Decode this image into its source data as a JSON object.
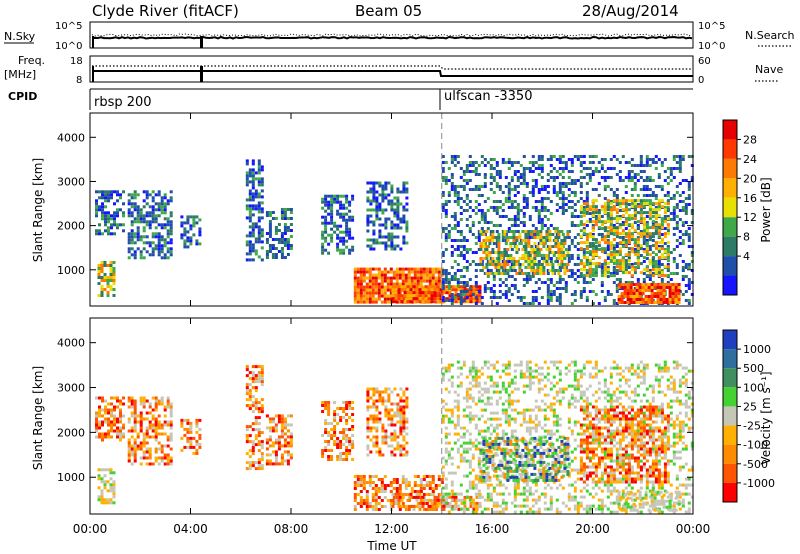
{
  "header": {
    "station": "Clyde River (fitACF)",
    "beam": "Beam 05",
    "date": "28/Aug/2014"
  },
  "panels": {
    "nsky": {
      "left_label": "N.Sky",
      "ticks_left": [
        "10^5",
        "10^0"
      ],
      "right_label": "N.Search",
      "ticks_right": [
        "10^5",
        "10^0"
      ]
    },
    "freq": {
      "left_label_1": "Freq.",
      "left_label_2": "[MHz]",
      "ticks_left": [
        "18",
        "8"
      ],
      "right_label": "Nave",
      "ticks_right": [
        "60",
        "0"
      ]
    },
    "cpid": {
      "label": "CPID",
      "programs": [
        {
          "name": "rbsp 200",
          "start_hour": 0
        },
        {
          "name": "ulfscan -3350",
          "start_hour": 14
        }
      ]
    }
  },
  "x_axis": {
    "title": "Time UT",
    "tick_labels": [
      "00:00",
      "04:00",
      "08:00",
      "12:00",
      "16:00",
      "20:00",
      "00:00"
    ]
  },
  "colorbars": {
    "power": {
      "title": "Power [dB]",
      "labels": [
        "28",
        "24",
        "20",
        "16",
        "12",
        "8",
        "4"
      ],
      "colors": [
        "#e60000",
        "#ff3a00",
        "#ff7a00",
        "#ffb000",
        "#e8e000",
        "#3fa94a",
        "#2d7a66",
        "#1f4fa8",
        "#1515ff"
      ]
    },
    "velocity": {
      "title": "Velocity [m s⁻¹]",
      "labels": [
        "1000",
        "500",
        "100",
        "25",
        "-25",
        "-100",
        "-500",
        "-1000"
      ],
      "colors": [
        "#1f3fbf",
        "#2e6fa0",
        "#3f8f5f",
        "#44d233",
        "#c6c6b8",
        "#ffb000",
        "#ff8c00",
        "#ff5500",
        "#ff0000"
      ]
    }
  },
  "chart_data": [
    {
      "type": "heatmap",
      "name": "power",
      "ylabel": "Slant Range [km]",
      "xlabel": "",
      "ylim": [
        180,
        4550
      ],
      "xlim_hours": [
        0,
        24
      ],
      "y_tick_labels": [
        "1000",
        "2000",
        "3000",
        "4000"
      ],
      "patches": [
        {
          "t": [
            0.2,
            1.3
          ],
          "r": [
            1800,
            2800
          ],
          "level": "low"
        },
        {
          "t": [
            0.3,
            1.0
          ],
          "r": [
            400,
            1200
          ],
          "level": "mid"
        },
        {
          "t": [
            1.5,
            3.2
          ],
          "r": [
            1300,
            2800
          ],
          "level": "low"
        },
        {
          "t": [
            3.6,
            4.4
          ],
          "r": [
            1500,
            2300
          ],
          "level": "low"
        },
        {
          "t": [
            6.2,
            6.9
          ],
          "r": [
            1200,
            3500
          ],
          "level": "low"
        },
        {
          "t": [
            7.0,
            8.0
          ],
          "r": [
            1300,
            2400
          ],
          "level": "low"
        },
        {
          "t": [
            9.2,
            10.5
          ],
          "r": [
            1400,
            2700
          ],
          "level": "low"
        },
        {
          "t": [
            11.0,
            12.6
          ],
          "r": [
            1500,
            3000
          ],
          "level": "low"
        },
        {
          "t": [
            10.5,
            14.0
          ],
          "r": [
            250,
            1050
          ],
          "level": "high"
        },
        {
          "t": [
            12.0,
            15.5
          ],
          "r": [
            300,
            650
          ],
          "level": "high"
        },
        {
          "t": [
            14.0,
            24.0
          ],
          "r": [
            250,
            3600
          ],
          "level": "low"
        },
        {
          "t": [
            15.5,
            19.0
          ],
          "r": [
            900,
            1900
          ],
          "level": "mid"
        },
        {
          "t": [
            19.5,
            23.0
          ],
          "r": [
            900,
            2600
          ],
          "level": "mid"
        },
        {
          "t": [
            21.0,
            23.5
          ],
          "r": [
            250,
            700
          ],
          "level": "high"
        }
      ],
      "cpid_change_hour": 14
    },
    {
      "type": "heatmap",
      "name": "velocity",
      "ylabel": "Slant Range [km]",
      "xlabel": "Time UT",
      "ylim": [
        180,
        4550
      ],
      "xlim_hours": [
        0,
        24
      ],
      "y_tick_labels": [
        "1000",
        "2000",
        "3000",
        "4000"
      ],
      "patches": [
        {
          "t": [
            0.2,
            1.3
          ],
          "r": [
            1800,
            2800
          ],
          "level": "neg"
        },
        {
          "t": [
            0.3,
            1.0
          ],
          "r": [
            400,
            1200
          ],
          "level": "gs"
        },
        {
          "t": [
            1.5,
            3.2
          ],
          "r": [
            1300,
            2800
          ],
          "level": "neg"
        },
        {
          "t": [
            3.6,
            4.4
          ],
          "r": [
            1500,
            2300
          ],
          "level": "neg"
        },
        {
          "t": [
            6.2,
            6.9
          ],
          "r": [
            1200,
            3500
          ],
          "level": "neg"
        },
        {
          "t": [
            7.0,
            8.0
          ],
          "r": [
            1300,
            2400
          ],
          "level": "neg"
        },
        {
          "t": [
            9.2,
            10.5
          ],
          "r": [
            1400,
            2700
          ],
          "level": "neg"
        },
        {
          "t": [
            11.0,
            12.6
          ],
          "r": [
            1500,
            3000
          ],
          "level": "neg"
        },
        {
          "t": [
            10.5,
            14.0
          ],
          "r": [
            250,
            1050
          ],
          "level": "neg"
        },
        {
          "t": [
            12.0,
            15.5
          ],
          "r": [
            300,
            650
          ],
          "level": "neg"
        },
        {
          "t": [
            14.0,
            24.0
          ],
          "r": [
            250,
            3600
          ],
          "level": "gs"
        },
        {
          "t": [
            15.5,
            19.0
          ],
          "r": [
            900,
            1900
          ],
          "level": "mixed"
        },
        {
          "t": [
            19.5,
            23.0
          ],
          "r": [
            900,
            2600
          ],
          "level": "neg"
        },
        {
          "t": [
            21.0,
            23.5
          ],
          "r": [
            250,
            700
          ],
          "level": "gs"
        }
      ],
      "cpid_change_hour": 14
    }
  ]
}
